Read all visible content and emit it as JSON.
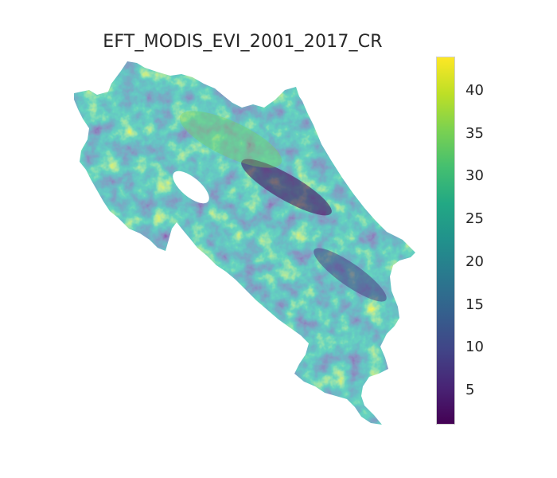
{
  "map": {
    "title": "EFT_MODIS_EVI_2001_2017_CR",
    "colormap": "viridis",
    "colorbar": {
      "min": 1,
      "max": 44,
      "ticks": [
        {
          "label": "5",
          "value": 5
        },
        {
          "label": "10",
          "value": 10
        },
        {
          "label": "15",
          "value": 15
        },
        {
          "label": "20",
          "value": 20
        },
        {
          "label": "25",
          "value": 25
        },
        {
          "label": "30",
          "value": 30
        },
        {
          "label": "35",
          "value": 35
        },
        {
          "label": "40",
          "value": 40
        }
      ]
    }
  }
}
